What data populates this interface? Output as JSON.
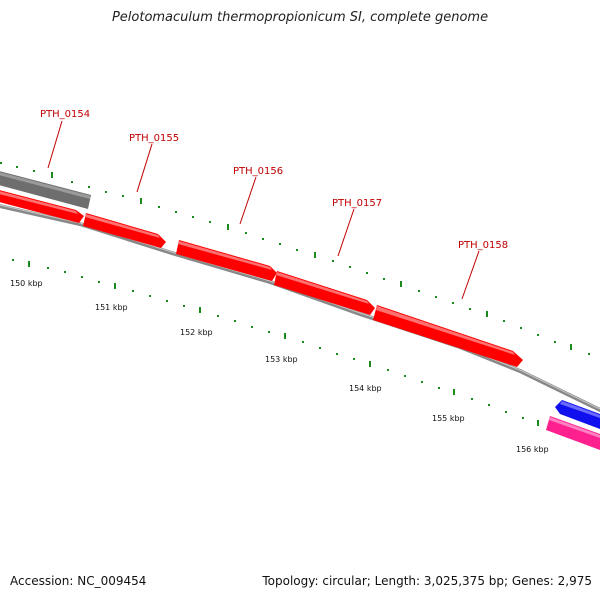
{
  "title": "Pelotomaculum thermopropionicum SI, complete genome",
  "footer": {
    "accession": "Accession: NC_009454",
    "summary": "Topology: circular; Length: 3,025,375 bp; Genes: 2,975"
  },
  "colors": {
    "backbone": "#888888",
    "gene_red": "#ff0000",
    "gene_gray": "#6e6e6e",
    "gene_blue": "#1010ee",
    "gene_pink": "#ff2090",
    "tick": "#1a8a1a",
    "label": "#c00000"
  },
  "genes": [
    {
      "label": "PTH_0154"
    },
    {
      "label": "PTH_0155"
    },
    {
      "label": "PTH_0156"
    },
    {
      "label": "PTH_0157"
    },
    {
      "label": "PTH_0158"
    }
  ],
  "kbp_ticks": [
    "150 kbp",
    "151 kbp",
    "152 kbp",
    "153 kbp",
    "154 kbp",
    "155 kbp",
    "156 kbp"
  ]
}
